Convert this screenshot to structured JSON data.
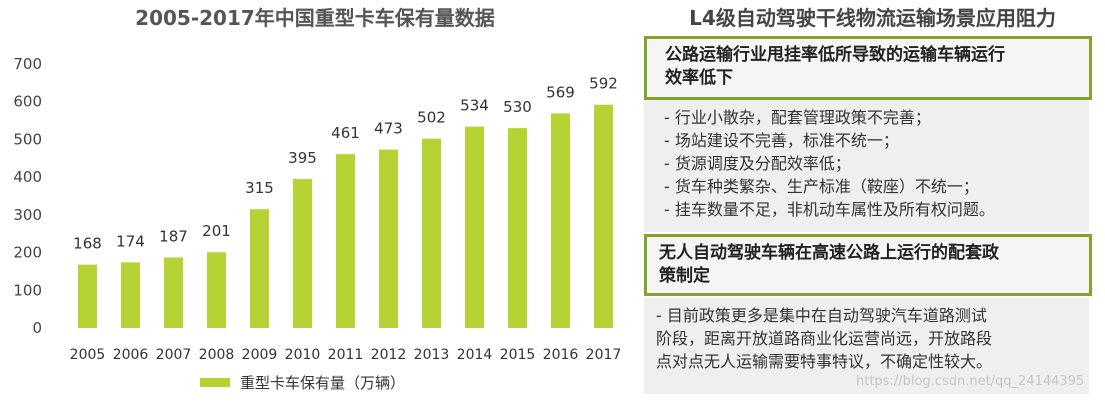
{
  "chart_data": {
    "type": "bar",
    "title": "2005-2017年中国重型卡车保有量数据",
    "categories": [
      "2005",
      "2006",
      "2007",
      "2008",
      "2009",
      "2010",
      "2011",
      "2012",
      "2013",
      "2014",
      "2015",
      "2016",
      "2017"
    ],
    "series": [
      {
        "name": "重型卡车保有量（万辆）",
        "values": [
          168,
          174,
          187,
          201,
          315,
          395,
          461,
          473,
          502,
          534,
          530,
          569,
          592
        ]
      }
    ],
    "ylim": [
      0,
      700
    ],
    "yticks": [
      0,
      100,
      200,
      300,
      400,
      500,
      600,
      700
    ],
    "grid": false,
    "legend": "bottom",
    "color": "#b5d334"
  },
  "right_panel": {
    "title": "L4级自动驾驶干线物流运输场景应用阻力",
    "box1": {
      "heading": "公路运输行业甩挂率低所导致的运输车辆运行效率低下",
      "heading_lines": [
        "公路运输行业甩挂率低所导致的运输车辆运行",
        "效率低下"
      ],
      "items": [
        "- 行业小散杂，配套管理政策不完善；",
        "- 场站建设不完善，标准不统一；",
        "- 货源调度及分配效率低；",
        "- 货车种类繁杂、生产标准（鞍座）不统一；",
        "- 挂车数量不足，非机动车属性及所有权问题。"
      ]
    },
    "box2": {
      "heading": "无人自动驾驶车辆在高速公路上运行的配套政策制定",
      "heading_lines": [
        "无人自动驾驶车辆在高速公路上运行的配套政",
        "策制定"
      ],
      "text_lines": [
        "- 目前政策更多是集中在自动驾驶汽车道路测试",
        "阶段，距离开放道路商业化运营尚远，开放路段",
        "点对点无人运输需要特事特议，不确定性较大。"
      ]
    }
  },
  "watermark": "https://blog.csdn.net/qq_24144395"
}
